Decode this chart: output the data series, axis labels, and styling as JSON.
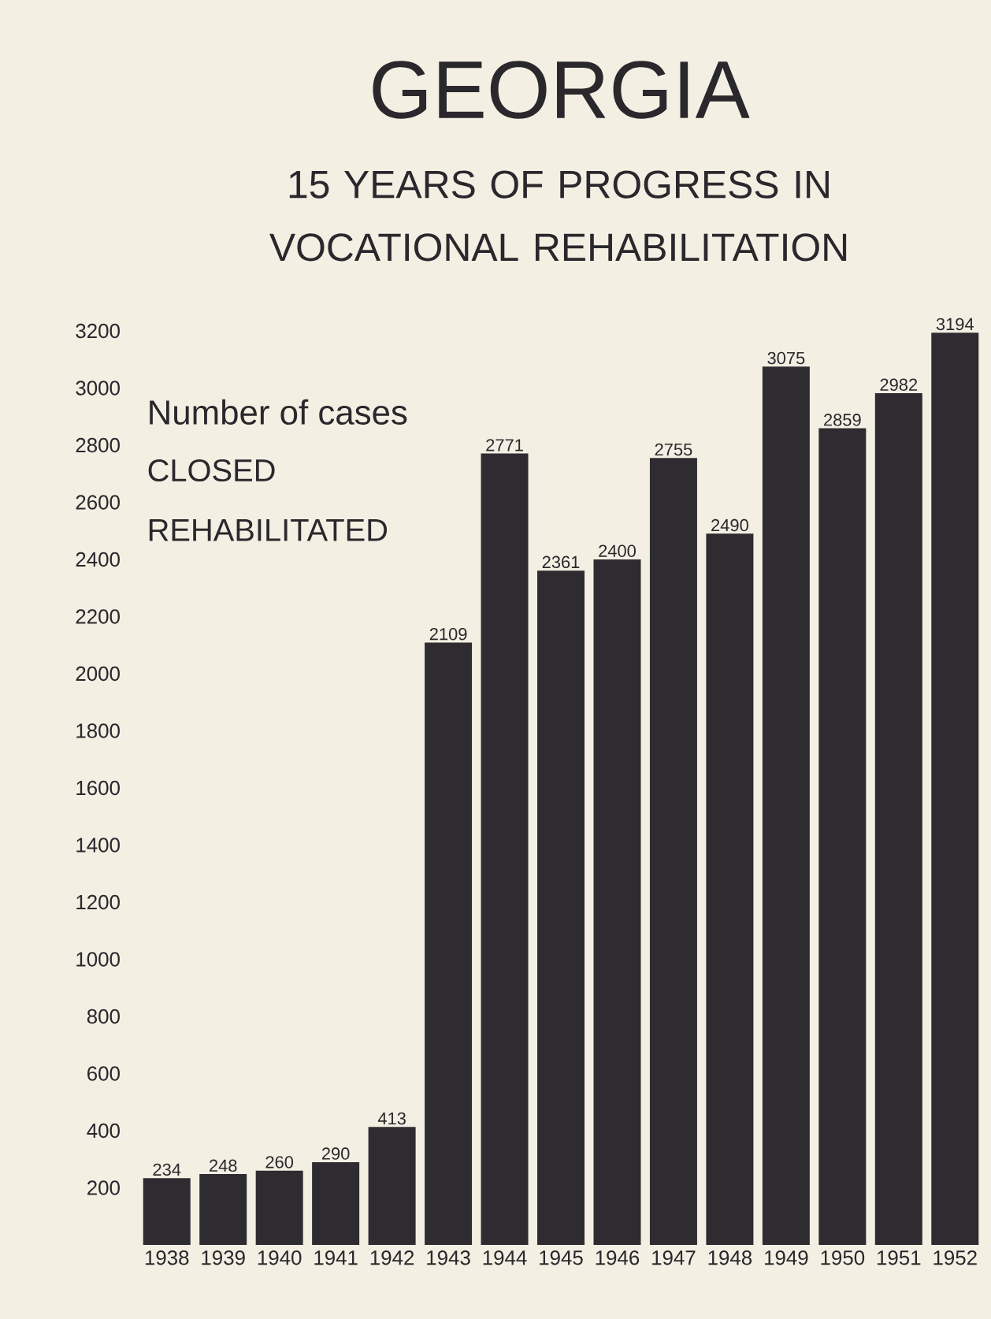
{
  "chart_data": {
    "type": "bar",
    "title": "GEORGIA",
    "subtitle": "15 YEARS OF PROGRESS IN VOCATIONAL REHABILITATION",
    "annotations": [
      "Number of cases",
      "CLOSED",
      "REHABILITATED"
    ],
    "categories": [
      "1938",
      "1939",
      "1940",
      "1941",
      "1942",
      "1943",
      "1944",
      "1945",
      "1946",
      "1947",
      "1948",
      "1949",
      "1950",
      "1951",
      "1952"
    ],
    "values": [
      234,
      248,
      260,
      290,
      413,
      2109,
      2771,
      2361,
      2400,
      2755,
      2490,
      3075,
      2859,
      2982,
      3194
    ],
    "color": "#2e2c31",
    "ylim": [
      0,
      3200
    ],
    "yticks": [
      200,
      400,
      600,
      800,
      1000,
      1200,
      1400,
      1600,
      1800,
      2000,
      2200,
      2400,
      2600,
      2800,
      3000,
      3200
    ],
    "data_labels": true,
    "grid": false
  }
}
